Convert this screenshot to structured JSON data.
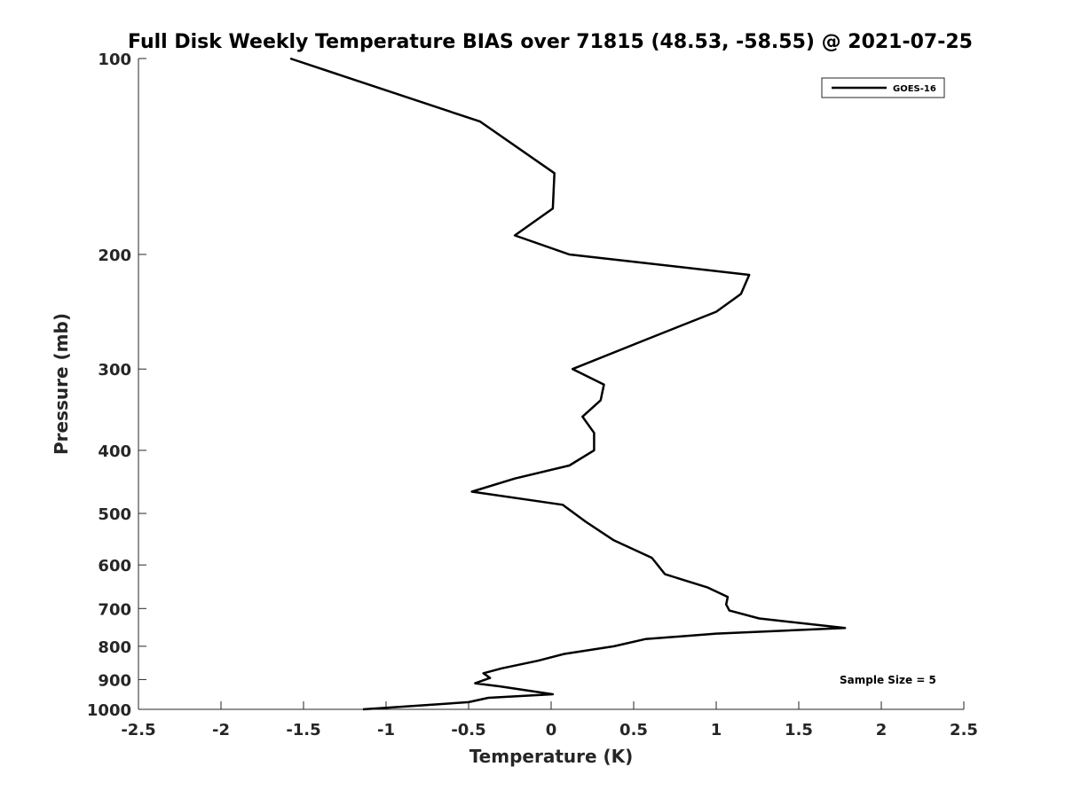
{
  "chart_data": {
    "type": "line",
    "title": "Full Disk Weekly Temperature BIAS over 71815 (48.53, -58.55) @ 2021-07-25",
    "xlabel": "Temperature (K)",
    "ylabel": "Pressure (mb)",
    "xlim": [
      -2.5,
      2.5
    ],
    "ylim": [
      1000,
      100
    ],
    "yscale": "log",
    "x_ticks": [
      -2.5,
      -2,
      -1.5,
      -1,
      -0.5,
      0,
      0.5,
      1,
      1.5,
      2,
      2.5
    ],
    "x_tick_labels": [
      "-2.5",
      "-2",
      "-1.5",
      "-1",
      "-0.5",
      "0",
      "0.5",
      "1",
      "1.5",
      "2",
      "2.5"
    ],
    "y_ticks": [
      100,
      200,
      300,
      400,
      500,
      600,
      700,
      800,
      900,
      1000
    ],
    "y_tick_labels": [
      "100",
      "200",
      "300",
      "400",
      "500",
      "600",
      "700",
      "800",
      "900",
      "1000"
    ],
    "grid": false,
    "legend_position": "top-right",
    "line_color": "#000000",
    "series": [
      {
        "name": "GOES-16",
        "points": [
          {
            "x": -1.58,
            "y": 100
          },
          {
            "x": -0.43,
            "y": 125
          },
          {
            "x": 0.02,
            "y": 150
          },
          {
            "x": 0.01,
            "y": 170
          },
          {
            "x": -0.22,
            "y": 187
          },
          {
            "x": 0.11,
            "y": 200
          },
          {
            "x": 1.2,
            "y": 215
          },
          {
            "x": 1.15,
            "y": 230
          },
          {
            "x": 1.0,
            "y": 245
          },
          {
            "x": 0.58,
            "y": 270
          },
          {
            "x": 0.13,
            "y": 300
          },
          {
            "x": 0.32,
            "y": 317
          },
          {
            "x": 0.3,
            "y": 335
          },
          {
            "x": 0.19,
            "y": 355
          },
          {
            "x": 0.26,
            "y": 376
          },
          {
            "x": 0.26,
            "y": 400
          },
          {
            "x": 0.11,
            "y": 422
          },
          {
            "x": -0.22,
            "y": 442
          },
          {
            "x": -0.48,
            "y": 463
          },
          {
            "x": 0.07,
            "y": 485
          },
          {
            "x": 0.21,
            "y": 515
          },
          {
            "x": 0.38,
            "y": 550
          },
          {
            "x": 0.61,
            "y": 585
          },
          {
            "x": 0.69,
            "y": 620
          },
          {
            "x": 0.95,
            "y": 650
          },
          {
            "x": 1.07,
            "y": 672
          },
          {
            "x": 1.06,
            "y": 690
          },
          {
            "x": 1.08,
            "y": 705
          },
          {
            "x": 1.26,
            "y": 725
          },
          {
            "x": 1.78,
            "y": 750
          },
          {
            "x": 1.0,
            "y": 765
          },
          {
            "x": 0.57,
            "y": 780
          },
          {
            "x": 0.38,
            "y": 800
          },
          {
            "x": 0.08,
            "y": 822
          },
          {
            "x": -0.08,
            "y": 842
          },
          {
            "x": -0.3,
            "y": 865
          },
          {
            "x": -0.41,
            "y": 880
          },
          {
            "x": -0.37,
            "y": 895
          },
          {
            "x": -0.46,
            "y": 912
          },
          {
            "x": -0.31,
            "y": 922
          },
          {
            "x": 0.01,
            "y": 948
          },
          {
            "x": -0.38,
            "y": 960
          },
          {
            "x": -0.5,
            "y": 975
          },
          {
            "x": -1.14,
            "y": 1000
          }
        ]
      }
    ],
    "annotation": "Sample Size = 5"
  }
}
